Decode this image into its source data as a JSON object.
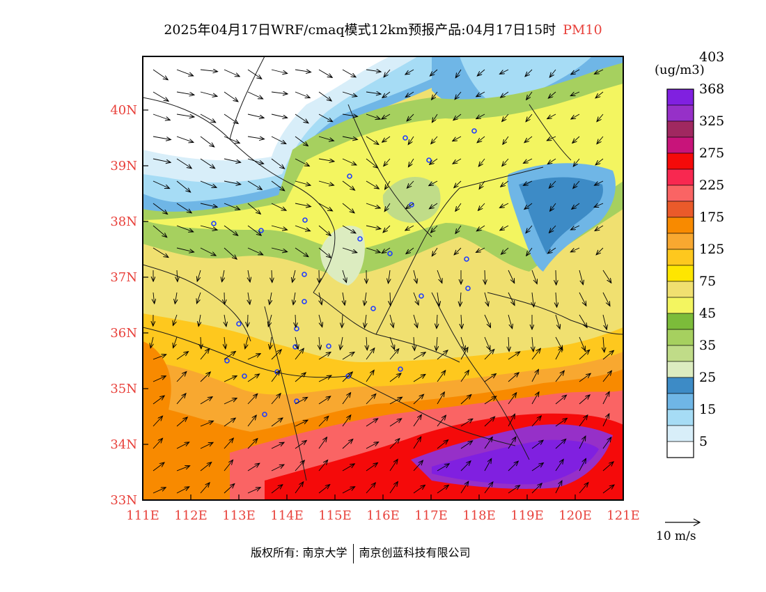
{
  "title": {
    "main": "2025年04月17日WRF/cmaq模式12km预报产品:04月17日15时",
    "pollutant": "PM10"
  },
  "map": {
    "lon_range": [
      111,
      121.3
    ],
    "lat_range": [
      33,
      41
    ],
    "lon_ticks": [
      "111E",
      "112E",
      "113E",
      "114E",
      "115E",
      "116E",
      "117E",
      "118E",
      "119E",
      "120E",
      "121E"
    ],
    "lat_ticks": [
      "33N",
      "34N",
      "35N",
      "36N",
      "37N",
      "38N",
      "39N",
      "40N"
    ],
    "tick_color": "#e8413b"
  },
  "legend": {
    "unit": "(ug/m3)",
    "colors": [
      "#ffffff",
      "#d8eef9",
      "#a6dcf5",
      "#6fb6e6",
      "#3d8bc6",
      "#dcecc0",
      "#c0dc88",
      "#a6d05f",
      "#7cbc3a",
      "#f3f560",
      "#f0e070",
      "#fee600",
      "#fec81e",
      "#f8a830",
      "#f88a00",
      "#ea5a2a",
      "#fa6464",
      "#f82850",
      "#f50a0a",
      "#c8147a",
      "#a02860",
      "#9630c8",
      "#8020e0"
    ],
    "labels": [
      "5",
      "15",
      "25",
      "35",
      "45",
      "75",
      "125",
      "175",
      "225",
      "275",
      "325",
      "368",
      "403"
    ]
  },
  "wind_reference": {
    "label": "10 m/s"
  },
  "footer": {
    "copyright_prefix": "版权所有:",
    "org1": "南京大学",
    "org2": "南京创蓝科技有限公司"
  }
}
